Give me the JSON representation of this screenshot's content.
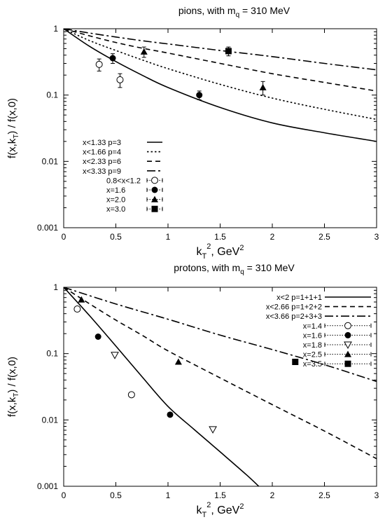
{
  "chart_data": [
    {
      "type": "line",
      "title_pre": "pions, with m",
      "title_sub": "q",
      "title_post": " = 310 MeV",
      "xlabel_pre": "k",
      "xlabel_sub": "T",
      "xlabel_sup": "2",
      "xlabel_post": ",  GeV",
      "xlabel_sup2": "2",
      "ylabel_pre": "f(x,k",
      "ylabel_sub": "T",
      "ylabel_post": ") / f(x,0)",
      "xlim": [
        0,
        3
      ],
      "ylim": [
        0.001,
        1
      ],
      "yscale": "log",
      "grid": false,
      "legend_position": "bottom-left",
      "x_ticks": [
        "0",
        "0.5",
        "1",
        "1.5",
        "2",
        "2.5",
        "3"
      ],
      "y_ticks": [
        "1",
        "0.1",
        "0.01",
        "0.001"
      ],
      "series": [
        {
          "name": "x<1.33 p=3",
          "style": "solid",
          "x": [
            0,
            0.25,
            0.5,
            0.75,
            1.0,
            1.5,
            2.0,
            2.5,
            3.0
          ],
          "y": [
            1.0,
            0.54,
            0.32,
            0.2,
            0.13,
            0.065,
            0.038,
            0.027,
            0.02
          ]
        },
        {
          "name": "x<1.66 p=4",
          "style": "dotted",
          "x": [
            0,
            0.25,
            0.5,
            0.75,
            1.0,
            1.5,
            2.0,
            2.5,
            3.0
          ],
          "y": [
            1.0,
            0.66,
            0.47,
            0.34,
            0.25,
            0.145,
            0.09,
            0.061,
            0.043
          ]
        },
        {
          "name": "x<2.33 p=6",
          "style": "dashed",
          "x": [
            0,
            0.25,
            0.5,
            0.75,
            1.0,
            1.5,
            2.0,
            2.5,
            3.0
          ],
          "y": [
            1.0,
            0.78,
            0.62,
            0.51,
            0.43,
            0.3,
            0.21,
            0.155,
            0.115
          ]
        },
        {
          "name": "x<3.33 p=9",
          "style": "dash-dot",
          "x": [
            0,
            0.25,
            0.5,
            0.75,
            1.0,
            1.5,
            2.0,
            2.5,
            3.0
          ],
          "y": [
            1.0,
            0.86,
            0.75,
            0.66,
            0.59,
            0.47,
            0.38,
            0.3,
            0.24
          ]
        }
      ],
      "points": [
        {
          "name": "0.8<x<1.2",
          "marker": "open-circle",
          "x": [
            0.34,
            0.54
          ],
          "y": [
            0.29,
            0.17
          ],
          "yerr": [
            0.06,
            0.04
          ],
          "xerr": [
            0.05,
            0.04
          ]
        },
        {
          "name": "x=1.6",
          "marker": "filled-circle",
          "x": [
            0.47,
            1.3
          ],
          "y": [
            0.36,
            0.1
          ],
          "yerr": [
            0.06,
            0.015
          ],
          "xerr": [
            0.05,
            0.05
          ]
        },
        {
          "name": "x=2.0",
          "marker": "filled-triangle",
          "x": [
            0.77,
            1.91
          ],
          "y": [
            0.45,
            0.13
          ],
          "yerr": [
            0.08,
            0.03
          ],
          "xerr": [
            0.04,
            0.04
          ]
        },
        {
          "name": "x=3.0",
          "marker": "filled-square",
          "x": [
            1.58
          ],
          "y": [
            0.46
          ],
          "yerr": [
            0.07
          ],
          "xerr": [
            0.05
          ]
        }
      ]
    },
    {
      "type": "line",
      "title_pre": "protons, with m",
      "title_sub": "q",
      "title_post": " = 310 MeV",
      "xlabel_pre": "k",
      "xlabel_sub": "T",
      "xlabel_sup": "2",
      "xlabel_post": ",  GeV",
      "xlabel_sup2": "2",
      "ylabel_pre": "f(x,k",
      "ylabel_sub": "T",
      "ylabel_post": ") / f(x,0)",
      "xlim": [
        0,
        3
      ],
      "ylim": [
        0.001,
        1
      ],
      "yscale": "log",
      "grid": false,
      "legend_position": "top-right",
      "x_ticks": [
        "0",
        "0.5",
        "1",
        "1.5",
        "2",
        "2.5",
        "3"
      ],
      "y_ticks": [
        "1",
        "0.1",
        "0.01",
        "0.001"
      ],
      "series": [
        {
          "name": "x<2 p=1+1+1",
          "style": "solid",
          "x": [
            0,
            0.25,
            0.5,
            0.75,
            1.0,
            1.25,
            1.5,
            1.75,
            1.87
          ],
          "y": [
            1.0,
            0.37,
            0.13,
            0.045,
            0.016,
            0.0072,
            0.0033,
            0.0015,
            0.001
          ]
        },
        {
          "name": "x<2.66 p=1+2+2",
          "style": "dashed",
          "x": [
            0,
            0.25,
            0.5,
            0.75,
            1.0,
            1.5,
            2.0,
            2.5,
            3.0
          ],
          "y": [
            1.0,
            0.56,
            0.32,
            0.19,
            0.11,
            0.043,
            0.017,
            0.0068,
            0.0026
          ]
        },
        {
          "name": "x<3.66 p=2+3+3",
          "style": "dash-dot",
          "x": [
            0,
            0.5,
            1.0,
            1.5,
            2.0,
            2.5,
            3.0
          ],
          "y": [
            1.0,
            0.56,
            0.33,
            0.19,
            0.115,
            0.068,
            0.038
          ]
        }
      ],
      "points": [
        {
          "name": "x=1.4",
          "marker": "open-circle",
          "x": [
            0.13,
            0.65
          ],
          "y": [
            0.47,
            0.024
          ],
          "yerr": [
            0,
            0
          ],
          "xerr": [
            0,
            0
          ]
        },
        {
          "name": "x=1.6",
          "marker": "filled-circle",
          "x": [
            0.33,
            1.02
          ],
          "y": [
            0.18,
            0.012
          ],
          "yerr": [
            0,
            0
          ],
          "xerr": [
            0,
            0
          ]
        },
        {
          "name": "x=1.8",
          "marker": "open-triangle-down",
          "x": [
            0.49,
            1.43
          ],
          "y": [
            0.095,
            0.0072
          ],
          "yerr": [
            0,
            0
          ],
          "xerr": [
            0,
            0
          ]
        },
        {
          "name": "x=2.5",
          "marker": "filled-triangle",
          "x": [
            0.17,
            1.1
          ],
          "y": [
            0.65,
            0.075
          ],
          "yerr": [
            0,
            0
          ],
          "xerr": [
            0,
            0
          ]
        },
        {
          "name": "x=3.5",
          "marker": "filled-square",
          "x": [
            2.22
          ],
          "y": [
            0.075
          ],
          "yerr": [
            0
          ],
          "xerr": [
            0
          ]
        }
      ]
    }
  ]
}
